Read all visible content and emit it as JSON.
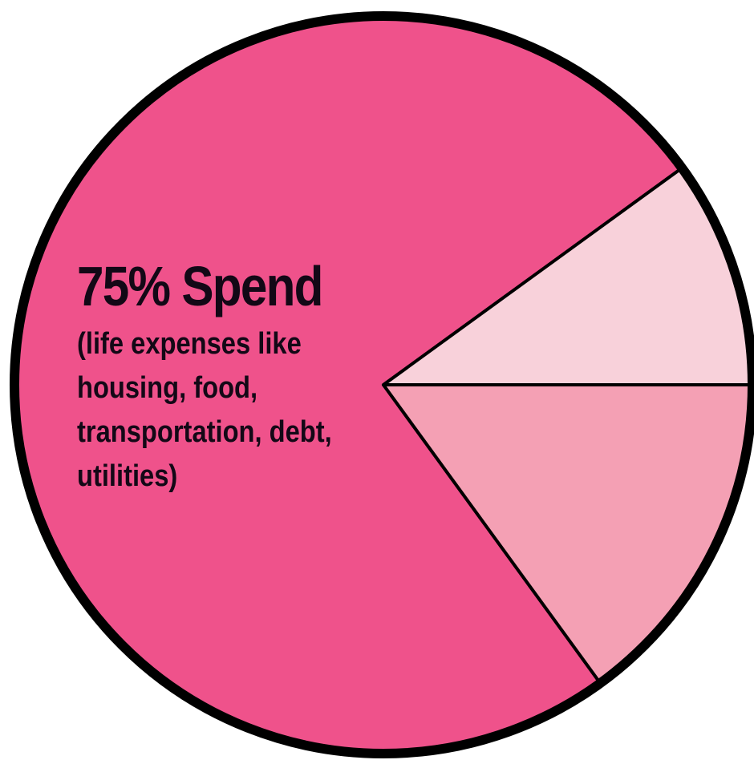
{
  "chart_data": {
    "type": "pie",
    "slices": [
      {
        "value": 75,
        "color": "#ef528b"
      },
      {
        "value": 10,
        "color": "#f8d1da"
      },
      {
        "value": 15,
        "color": "#f4a0b4"
      }
    ],
    "labels": [
      {
        "slice": 0,
        "title": "75% Spend",
        "description_lines": [
          "(life expenses like",
          "housing, food,",
          "transportation, debt,",
          "utilities)"
        ]
      }
    ]
  }
}
